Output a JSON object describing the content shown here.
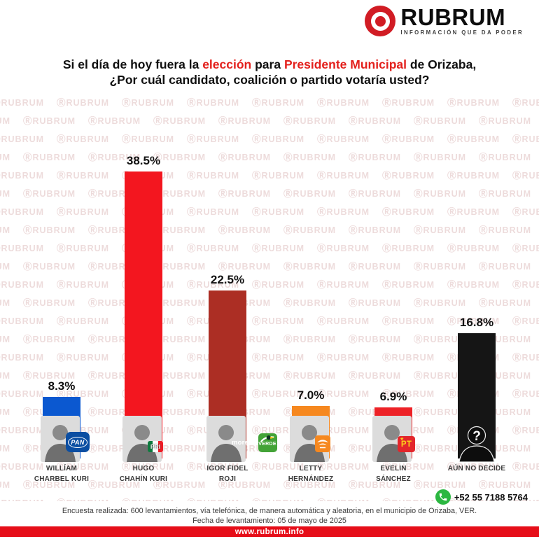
{
  "brand": {
    "name": "RUBRUM",
    "tagline": "INFORMACIÓN QUE DA PODER",
    "logo_red": "#d11c24"
  },
  "watermark": {
    "mark": "Ⓡ",
    "text": "RUBRUM"
  },
  "title": {
    "line1_segments": [
      {
        "text": "Si el día de hoy fuera la ",
        "highlight": false
      },
      {
        "text": "elección",
        "highlight": true
      },
      {
        "text": " para ",
        "highlight": false
      },
      {
        "text": "Presidente Municipal",
        "highlight": true
      },
      {
        "text": " de Orizaba,",
        "highlight": false
      }
    ],
    "line2": "¿Por cuál candidato, coalición o partido votaría usted?",
    "highlight_color": "#e3201c"
  },
  "chart_data": {
    "type": "bar",
    "title": "Si el día de hoy fuera la elección para Presidente Municipal de Orizaba, ¿Por cuál candidato, coalición o partido votaría usted?",
    "categories": [
      "WILLÍAM CHARBEL KURI",
      "HUGO CHAHÍN KURI",
      "IGOR FIDEL ROJI",
      "LETTY HERNÁNDEZ",
      "EVELIN SÁNCHEZ",
      "AÚN NO DECIDE"
    ],
    "values": [
      8.3,
      38.5,
      22.5,
      7.0,
      6.9,
      16.8
    ],
    "value_labels": [
      "8.3%",
      "38.5%",
      "22.5%",
      "7.0%",
      "6.9%",
      "16.8%"
    ],
    "bar_colors": [
      "#0b58d0",
      "#f3161f",
      "#ac2e24",
      "#f6881f",
      "#ed2227",
      "#151515"
    ],
    "parties": [
      "PAN",
      "PRI",
      "MORENA / VERDE",
      "MC",
      "PT",
      null
    ],
    "xlabel": "",
    "ylabel": "",
    "ylim": [
      0,
      40
    ],
    "grid": false,
    "legend": false
  },
  "candidates": [
    {
      "name_lines": [
        "WILLÍAM",
        "CHARBEL KURI"
      ],
      "badges": [
        {
          "type": "pan",
          "label": "PAN"
        }
      ],
      "photo": "man-portrait"
    },
    {
      "name_lines": [
        "HUGO",
        "CHAHÍN KURI"
      ],
      "badges": [
        {
          "type": "pri",
          "label": "PRI"
        }
      ],
      "photo": "man-portrait"
    },
    {
      "name_lines": [
        "IGOR FIDEL",
        "ROJI"
      ],
      "badges": [
        {
          "type": "morena",
          "label": "morena"
        },
        {
          "type": "verde",
          "label": "VERDE"
        }
      ],
      "photo": "man-portrait"
    },
    {
      "name_lines": [
        "LETTY",
        "HERNÁNDEZ"
      ],
      "badges": [
        {
          "type": "mc",
          "label": ""
        }
      ],
      "photo": "woman-portrait"
    },
    {
      "name_lines": [
        "EVELIN",
        "SÁNCHEZ"
      ],
      "badges": [
        {
          "type": "pt",
          "label": "PT"
        }
      ],
      "photo": "woman-portrait"
    },
    {
      "name_lines": [
        "AÚN NO DECIDE"
      ],
      "badges": [],
      "photo": "unknown-silhouette",
      "unknown_mark": "?"
    }
  ],
  "footer": {
    "phone": "+52 55 7188 5764",
    "methodology": "Encuesta realizada: 600 levantamientos, vía telefónica, de manera automática y aleatoria, en el municipio de Orizaba, VER.",
    "date_line": "Fecha de levantamiento: 05 de mayo de 2025",
    "website": "www.rubrum.info"
  }
}
